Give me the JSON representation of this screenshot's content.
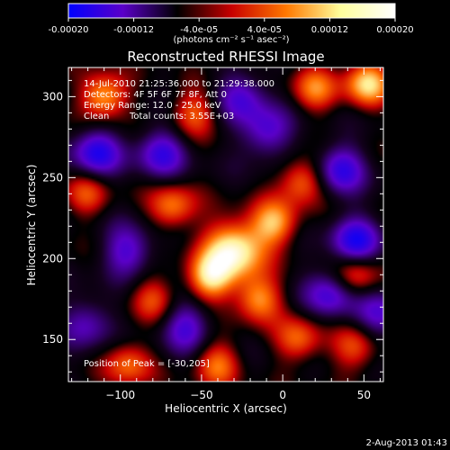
{
  "chart_data": {
    "type": "heatmap",
    "title": "Reconstructed RHESSI Image",
    "xlabel": "Heliocentric X (arcsec)",
    "ylabel": "Heliocentric Y (arcsec)",
    "xlim": [
      -132,
      62
    ],
    "ylim": [
      124,
      318
    ],
    "x_ticks": [
      -100,
      -50,
      0,
      50
    ],
    "y_ticks": [
      150,
      200,
      250,
      300
    ],
    "colorbar": {
      "range": [
        -0.0002,
        0.0002
      ],
      "tick_labels": [
        "-0.00020",
        "-0.00012",
        "-4.0e-05",
        "4.0e-05",
        "0.00012",
        "0.00020"
      ],
      "tick_values": [
        -0.0002,
        -0.00012,
        -4e-05,
        4e-05,
        0.00012,
        0.0002
      ],
      "units_label": "(photons cm⁻² s⁻¹ asec⁻²)",
      "colors": [
        "#0000ff",
        "#5a00c8",
        "#000000",
        "#c80000",
        "#ff7800",
        "#ffff9c",
        "#ffffff"
      ]
    },
    "annotations": {
      "time_range": "14-Jul-2010 21:25:36.000 to 21:29:38.000",
      "detectors": "Detectors: 4F 5F 6F 7F 8F, Att 0",
      "energy_range": "Energy Range: 12.0 - 25.0 keV",
      "method": "Clean",
      "total_counts": "Total counts: 3.55E+03",
      "peak_position": "Position of Peak = [-30,205]"
    },
    "peak": [
      -30,
      205
    ],
    "features": [
      {
        "kind": "peak",
        "x": -30,
        "y": 205,
        "amp": 1.0
      },
      {
        "kind": "source",
        "x": -5,
        "y": 222,
        "amp": 0.7
      },
      {
        "kind": "source",
        "x": -45,
        "y": 188,
        "amp": 0.75
      },
      {
        "kind": "source",
        "x": -68,
        "y": 232,
        "amp": 0.6
      },
      {
        "kind": "source",
        "x": 12,
        "y": 248,
        "amp": 0.6
      },
      {
        "kind": "source",
        "x": -15,
        "y": 175,
        "amp": 0.65
      },
      {
        "kind": "source",
        "x": -110,
        "y": 300,
        "amp": 0.75
      },
      {
        "kind": "source",
        "x": -55,
        "y": 290,
        "amp": 0.5
      },
      {
        "kind": "source",
        "x": -80,
        "y": 175,
        "amp": 0.45
      },
      {
        "kind": "source",
        "x": -95,
        "y": 135,
        "amp": 0.55
      },
      {
        "kind": "source",
        "x": -40,
        "y": 135,
        "amp": 0.55
      },
      {
        "kind": "source",
        "x": 10,
        "y": 150,
        "amp": 0.55
      },
      {
        "kind": "source",
        "x": 45,
        "y": 190,
        "amp": 0.6
      },
      {
        "kind": "source",
        "x": 52,
        "y": 308,
        "amp": 0.8
      },
      {
        "kind": "source",
        "x": 20,
        "y": 305,
        "amp": 0.55
      },
      {
        "kind": "source",
        "x": -120,
        "y": 240,
        "amp": 0.45
      },
      {
        "kind": "source",
        "x": 45,
        "y": 145,
        "amp": 0.5
      },
      {
        "kind": "hollow",
        "x": -115,
        "y": 265,
        "amp": -0.7
      },
      {
        "kind": "hollow",
        "x": 45,
        "y": 210,
        "amp": -0.75
      },
      {
        "kind": "hollow",
        "x": 35,
        "y": 255,
        "amp": -0.65
      },
      {
        "kind": "hollow",
        "x": -75,
        "y": 265,
        "amp": -0.6
      },
      {
        "kind": "hollow",
        "x": -10,
        "y": 278,
        "amp": -0.55
      },
      {
        "kind": "hollow",
        "x": 30,
        "y": 178,
        "amp": -0.6
      },
      {
        "kind": "hollow",
        "x": -95,
        "y": 205,
        "amp": -0.55
      },
      {
        "kind": "hollow",
        "x": -60,
        "y": 158,
        "amp": -0.55
      },
      {
        "kind": "hollow",
        "x": 60,
        "y": 165,
        "amp": -0.5
      },
      {
        "kind": "hollow",
        "x": -120,
        "y": 160,
        "amp": -0.45
      },
      {
        "kind": "hollow",
        "x": -25,
        "y": 300,
        "amp": -0.5
      }
    ]
  },
  "footer": {
    "date_stamp": "2-Aug-2013 01:43"
  }
}
